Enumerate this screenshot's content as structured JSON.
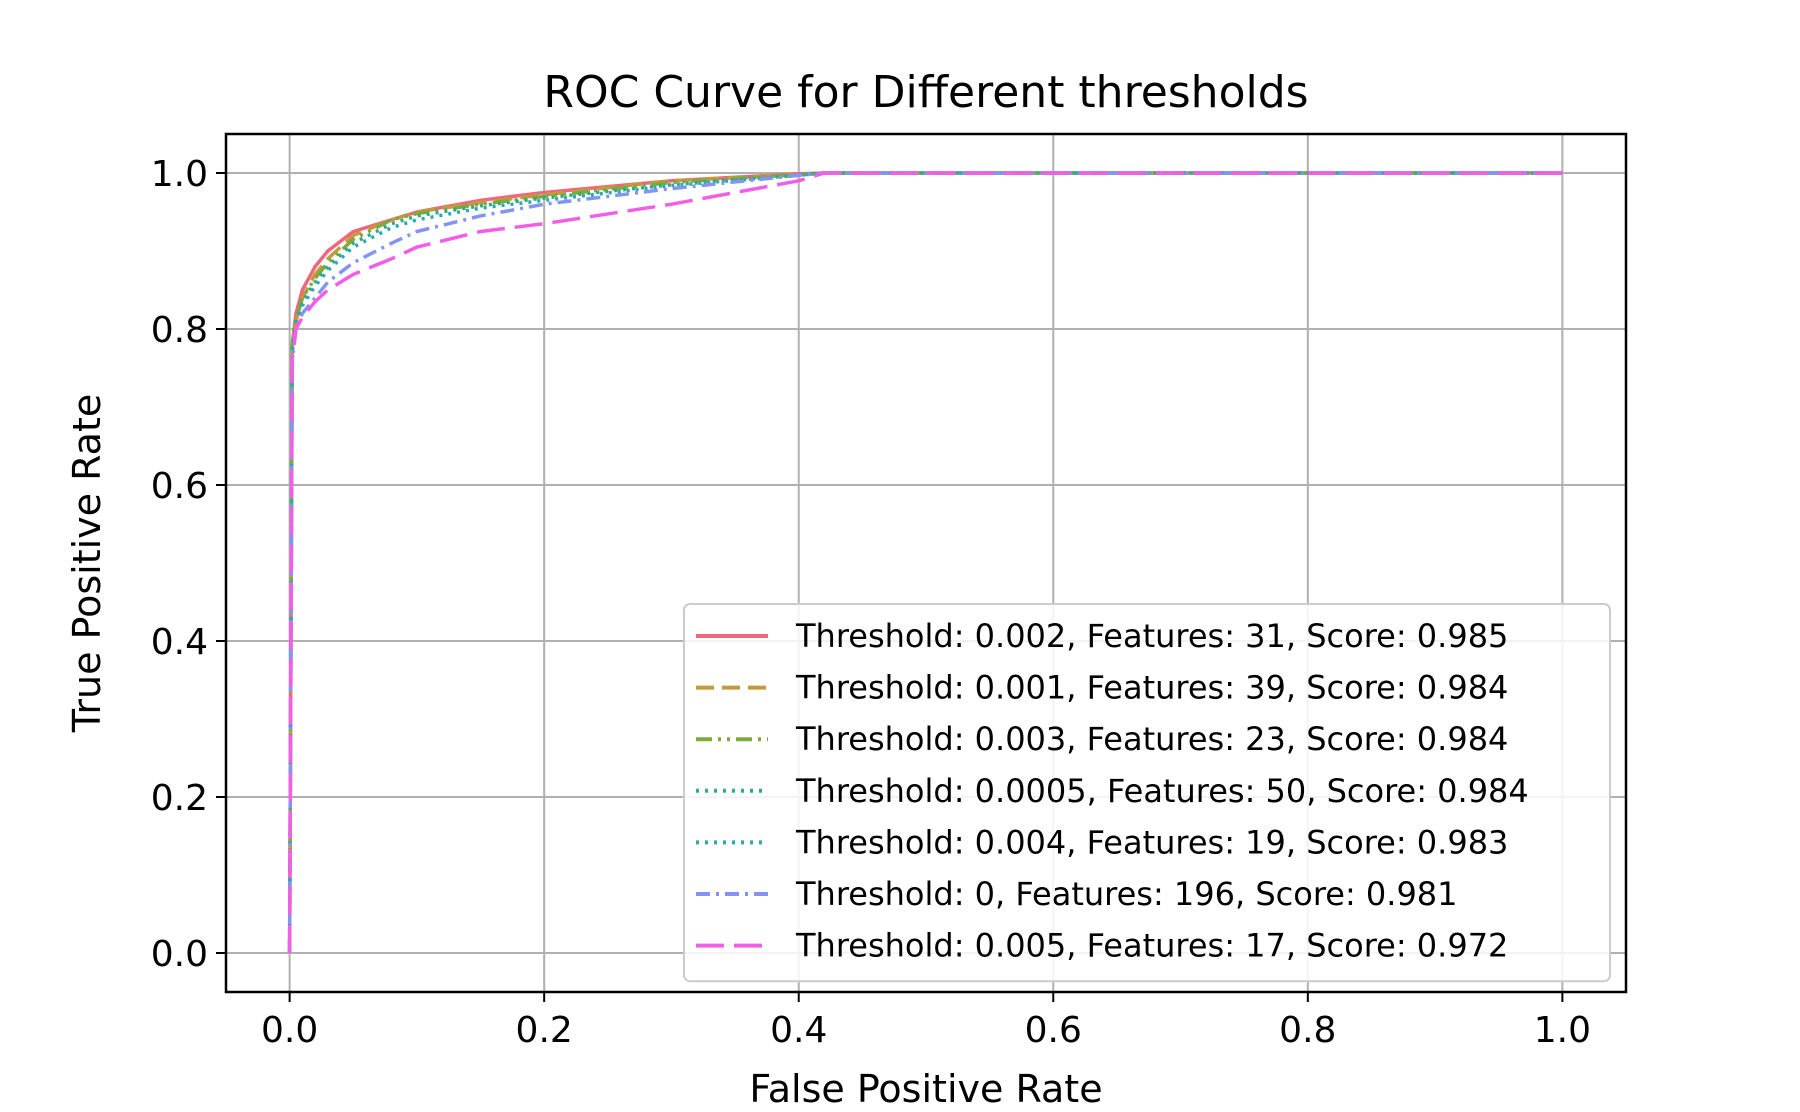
{
  "chart_data": {
    "type": "line",
    "title": "ROC Curve for Different thresholds",
    "xlabel": "False Positive Rate",
    "ylabel": "True Positive Rate",
    "xlim": [
      -0.05,
      1.05
    ],
    "ylim": [
      -0.05,
      1.05
    ],
    "xticks": [
      0.0,
      0.2,
      0.4,
      0.6,
      0.8,
      1.0
    ],
    "yticks": [
      0.0,
      0.2,
      0.4,
      0.6,
      0.8,
      1.0
    ],
    "xtick_labels": [
      "0.0",
      "0.2",
      "0.4",
      "0.6",
      "0.8",
      "1.0"
    ],
    "ytick_labels": [
      "0.0",
      "0.2",
      "0.4",
      "0.6",
      "0.8",
      "1.0"
    ],
    "grid": true,
    "legend_position": "lower-right",
    "series": [
      {
        "name": "Threshold: 0.002, Features: 31, Score: 0.985",
        "color": "#f0677c",
        "dash": "solid",
        "x": [
          0,
          0.002,
          0.005,
          0.01,
          0.02,
          0.03,
          0.05,
          0.08,
          0.1,
          0.15,
          0.2,
          0.3,
          0.4,
          0.42,
          1.0
        ],
        "y": [
          0,
          0.78,
          0.82,
          0.85,
          0.88,
          0.9,
          0.925,
          0.94,
          0.95,
          0.965,
          0.975,
          0.99,
          0.999,
          1.0,
          1.0
        ]
      },
      {
        "name": "Threshold: 0.001, Features: 39, Score: 0.984",
        "color": "#c59a3e",
        "dash": "dashed",
        "x": [
          0,
          0.002,
          0.005,
          0.01,
          0.02,
          0.03,
          0.05,
          0.08,
          0.1,
          0.15,
          0.2,
          0.3,
          0.4,
          0.42,
          1.0
        ],
        "y": [
          0,
          0.78,
          0.81,
          0.84,
          0.87,
          0.89,
          0.92,
          0.94,
          0.95,
          0.962,
          0.972,
          0.99,
          0.998,
          1.0,
          1.0
        ]
      },
      {
        "name": "Threshold: 0.003, Features: 23, Score: 0.984",
        "color": "#7eaa3c",
        "dash": "dashdotdot",
        "x": [
          0,
          0.002,
          0.005,
          0.01,
          0.02,
          0.03,
          0.05,
          0.08,
          0.1,
          0.15,
          0.2,
          0.3,
          0.4,
          0.42,
          1.0
        ],
        "y": [
          0,
          0.78,
          0.81,
          0.84,
          0.865,
          0.885,
          0.915,
          0.94,
          0.948,
          0.96,
          0.97,
          0.988,
          0.998,
          1.0,
          1.0
        ]
      },
      {
        "name": "Threshold: 0.0005, Features: 50, Score: 0.984",
        "color": "#2aae7e",
        "dash": "dotted",
        "x": [
          0,
          0.002,
          0.005,
          0.01,
          0.02,
          0.03,
          0.05,
          0.08,
          0.1,
          0.15,
          0.2,
          0.3,
          0.4,
          0.42,
          1.0
        ],
        "y": [
          0,
          0.78,
          0.81,
          0.835,
          0.86,
          0.88,
          0.91,
          0.935,
          0.945,
          0.958,
          0.968,
          0.985,
          0.997,
          1.0,
          1.0
        ]
      },
      {
        "name": "Threshold: 0.004, Features: 19, Score: 0.983",
        "color": "#2ba8b8",
        "dash": "dotted",
        "x": [
          0,
          0.002,
          0.005,
          0.01,
          0.02,
          0.03,
          0.05,
          0.08,
          0.1,
          0.15,
          0.2,
          0.3,
          0.4,
          0.42,
          1.0
        ],
        "y": [
          0,
          0.77,
          0.805,
          0.83,
          0.855,
          0.875,
          0.905,
          0.93,
          0.94,
          0.955,
          0.965,
          0.984,
          0.997,
          1.0,
          1.0
        ]
      },
      {
        "name": "Threshold: 0, Features: 196, Score: 0.981",
        "color": "#8494f5",
        "dash": "dashdot",
        "x": [
          0,
          0.002,
          0.005,
          0.01,
          0.02,
          0.03,
          0.05,
          0.08,
          0.1,
          0.15,
          0.2,
          0.3,
          0.4,
          0.42,
          1.0
        ],
        "y": [
          0,
          0.76,
          0.8,
          0.82,
          0.84,
          0.86,
          0.885,
          0.91,
          0.925,
          0.945,
          0.96,
          0.98,
          0.997,
          1.0,
          1.0
        ]
      },
      {
        "name": "Threshold: 0.005, Features: 17, Score: 0.972",
        "color": "#f35ee8",
        "dash": "longdash",
        "x": [
          0,
          0.002,
          0.005,
          0.01,
          0.02,
          0.03,
          0.05,
          0.08,
          0.1,
          0.15,
          0.2,
          0.3,
          0.4,
          0.42,
          1.0
        ],
        "y": [
          0,
          0.76,
          0.8,
          0.815,
          0.835,
          0.85,
          0.87,
          0.89,
          0.905,
          0.925,
          0.935,
          0.96,
          0.99,
          1.0,
          1.0
        ]
      }
    ]
  }
}
